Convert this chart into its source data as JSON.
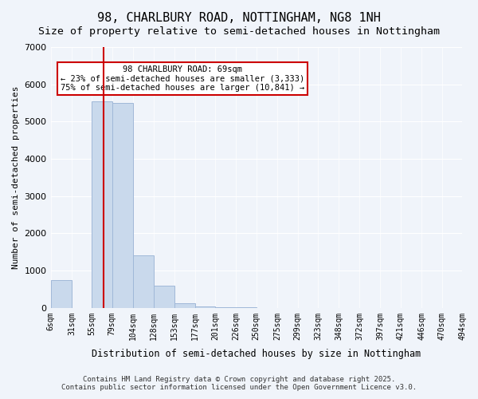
{
  "title": "98, CHARLBURY ROAD, NOTTINGHAM, NG8 1NH",
  "subtitle": "Size of property relative to semi-detached houses in Nottingham",
  "xlabel": "Distribution of semi-detached houses by size in Nottingham",
  "ylabel": "Number of semi-detached properties",
  "annotation_line1": "98 CHARLBURY ROAD: 69sqm",
  "annotation_line2": "← 23% of semi-detached houses are smaller (3,333)",
  "annotation_line3": "75% of semi-detached houses are larger (10,841) →",
  "footer_line1": "Contains HM Land Registry data © Crown copyright and database right 2025.",
  "footer_line2": "Contains public sector information licensed under the Open Government Licence v3.0.",
  "property_size": 69,
  "bin_edges": [
    6,
    31,
    55,
    79,
    104,
    128,
    153,
    177,
    201,
    226,
    250,
    275,
    299,
    323,
    348,
    372,
    397,
    421,
    446,
    470,
    494
  ],
  "bar_heights": [
    750,
    0,
    5550,
    5500,
    1400,
    600,
    130,
    30,
    15,
    8,
    5,
    3,
    2,
    1,
    1,
    1,
    0,
    0,
    0,
    0
  ],
  "bar_color": "#c9d9ec",
  "bar_edge_color": "#a0b8d8",
  "highlight_bar_color": "#c9d9ec",
  "vline_color": "#cc0000",
  "annotation_box_color": "#cc0000",
  "background_color": "#f0f4fa",
  "ylim": [
    0,
    7000
  ],
  "title_fontsize": 11,
  "subtitle_fontsize": 9.5
}
